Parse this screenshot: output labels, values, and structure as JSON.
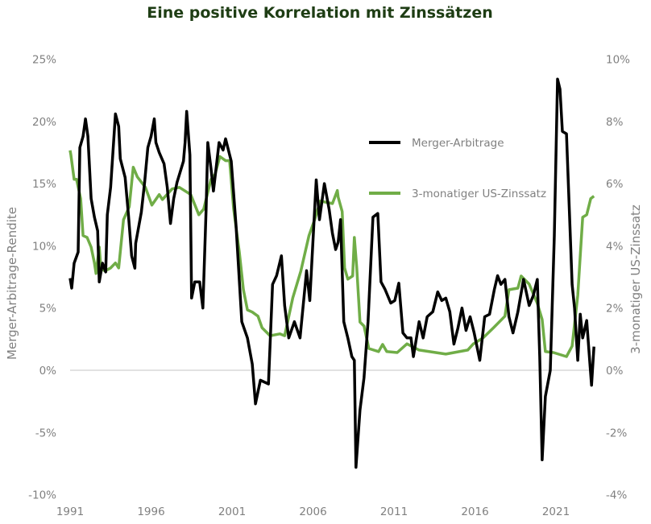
{
  "chart_data": {
    "type": "line",
    "title": "Eine positive Korrelation mit Zinssätzen",
    "ylabel": "Merger-Arbitrage-Rendite",
    "y2label": "3-monatiger US-Zinssatz",
    "xlabel": "",
    "xlim": [
      1991,
      2023.4
    ],
    "ylim": [
      -10,
      25
    ],
    "y2lim": [
      -4,
      10
    ],
    "x_ticks": [
      "1991",
      "1996",
      "2001",
      "2006",
      "2011",
      "2016",
      "2021"
    ],
    "y_ticks": [
      "25%",
      "20%",
      "15%",
      "10%",
      "5%",
      "0%",
      "-5%",
      "-10%"
    ],
    "y2_ticks": [
      "10%",
      "8%",
      "6%",
      "4%",
      "2%",
      "0%",
      "-2%",
      "-4%"
    ],
    "grid": "zero line only",
    "legend_position": "top-right",
    "colors": {
      "title": "#1e3d14",
      "merger": "#000000",
      "rate": "#70ad47",
      "axis_text": "#808080",
      "zero_line": "#d9d9d9"
    },
    "series": [
      {
        "name": "Merger-Arbitrage",
        "axis": "left",
        "points": [
          [
            1991.0,
            7.4
          ],
          [
            1991.1,
            6.6
          ],
          [
            1991.25,
            8.6
          ],
          [
            1991.5,
            9.5
          ],
          [
            1991.6,
            17.9
          ],
          [
            1991.8,
            18.8
          ],
          [
            1991.95,
            20.2
          ],
          [
            1992.1,
            18.8
          ],
          [
            1992.3,
            13.8
          ],
          [
            1992.5,
            12.3
          ],
          [
            1992.7,
            11.2
          ],
          [
            1992.8,
            7.1
          ],
          [
            1993.0,
            8.6
          ],
          [
            1993.2,
            7.9
          ],
          [
            1993.3,
            12.5
          ],
          [
            1993.5,
            14.7
          ],
          [
            1993.8,
            20.6
          ],
          [
            1994.0,
            19.6
          ],
          [
            1994.1,
            17.0
          ],
          [
            1994.4,
            15.5
          ],
          [
            1994.6,
            12.5
          ],
          [
            1994.8,
            9.2
          ],
          [
            1995.0,
            8.2
          ],
          [
            1995.05,
            10.2
          ],
          [
            1995.4,
            12.7
          ],
          [
            1995.6,
            15.1
          ],
          [
            1995.8,
            17.9
          ],
          [
            1996.0,
            18.8
          ],
          [
            1996.2,
            20.2
          ],
          [
            1996.3,
            18.3
          ],
          [
            1996.5,
            17.5
          ],
          [
            1996.8,
            16.6
          ],
          [
            1997.0,
            14.7
          ],
          [
            1997.2,
            11.8
          ],
          [
            1997.4,
            13.8
          ],
          [
            1997.6,
            15.1
          ],
          [
            1998.0,
            16.8
          ],
          [
            1998.1,
            18.3
          ],
          [
            1998.2,
            20.8
          ],
          [
            1998.4,
            17.3
          ],
          [
            1998.5,
            5.8
          ],
          [
            1998.7,
            7.1
          ],
          [
            1999.0,
            7.1
          ],
          [
            1999.2,
            5.0
          ],
          [
            1999.4,
            12.9
          ],
          [
            1999.5,
            18.3
          ],
          [
            1999.7,
            16.2
          ],
          [
            1999.85,
            14.4
          ],
          [
            2000.2,
            18.3
          ],
          [
            2000.45,
            17.7
          ],
          [
            2000.6,
            18.6
          ],
          [
            2000.95,
            16.8
          ],
          [
            2001.25,
            11.6
          ],
          [
            2001.6,
            3.9
          ],
          [
            2001.95,
            2.6
          ],
          [
            2002.25,
            0.5
          ],
          [
            2002.45,
            -2.7
          ],
          [
            2002.75,
            -0.8
          ],
          [
            2003.25,
            -1.1
          ],
          [
            2003.5,
            6.9
          ],
          [
            2003.75,
            7.6
          ],
          [
            2004.05,
            9.2
          ],
          [
            2004.25,
            5.2
          ],
          [
            2004.5,
            2.6
          ],
          [
            2004.85,
            3.9
          ],
          [
            2005.2,
            2.6
          ],
          [
            2005.6,
            8.0
          ],
          [
            2005.8,
            5.6
          ],
          [
            2006.2,
            15.3
          ],
          [
            2006.4,
            12.1
          ],
          [
            2006.7,
            15.0
          ],
          [
            2007.0,
            12.9
          ],
          [
            2007.2,
            11.0
          ],
          [
            2007.4,
            9.7
          ],
          [
            2007.55,
            10.3
          ],
          [
            2007.7,
            12.1
          ],
          [
            2007.9,
            3.9
          ],
          [
            2008.15,
            2.6
          ],
          [
            2008.4,
            1.1
          ],
          [
            2008.55,
            0.8
          ],
          [
            2008.65,
            -7.8
          ],
          [
            2008.9,
            -3.2
          ],
          [
            2009.15,
            -0.6
          ],
          [
            2009.4,
            3.9
          ],
          [
            2009.7,
            12.3
          ],
          [
            2010.0,
            12.6
          ],
          [
            2010.2,
            7.1
          ],
          [
            2010.45,
            6.5
          ],
          [
            2010.8,
            5.4
          ],
          [
            2011.05,
            5.6
          ],
          [
            2011.3,
            7.0
          ],
          [
            2011.55,
            3.0
          ],
          [
            2011.8,
            2.6
          ],
          [
            2012.05,
            2.6
          ],
          [
            2012.2,
            1.1
          ],
          [
            2012.55,
            3.9
          ],
          [
            2012.8,
            2.6
          ],
          [
            2013.05,
            4.3
          ],
          [
            2013.4,
            4.7
          ],
          [
            2013.7,
            6.3
          ],
          [
            2013.95,
            5.6
          ],
          [
            2014.2,
            5.8
          ],
          [
            2014.45,
            4.7
          ],
          [
            2014.7,
            2.1
          ],
          [
            2014.95,
            3.4
          ],
          [
            2015.2,
            5.0
          ],
          [
            2015.45,
            3.2
          ],
          [
            2015.7,
            4.3
          ],
          [
            2015.95,
            3.0
          ],
          [
            2016.3,
            0.8
          ],
          [
            2016.6,
            4.3
          ],
          [
            2016.9,
            4.5
          ],
          [
            2017.2,
            6.5
          ],
          [
            2017.4,
            7.6
          ],
          [
            2017.6,
            6.9
          ],
          [
            2017.85,
            7.3
          ],
          [
            2018.1,
            4.3
          ],
          [
            2018.35,
            3.0
          ],
          [
            2018.65,
            4.7
          ],
          [
            2019.0,
            7.3
          ],
          [
            2019.35,
            5.2
          ],
          [
            2019.6,
            6.0
          ],
          [
            2019.85,
            7.3
          ],
          [
            2020.0,
            1.1
          ],
          [
            2020.15,
            -7.2
          ],
          [
            2020.35,
            -2.1
          ],
          [
            2020.65,
            0.0
          ],
          [
            2020.9,
            10.8
          ],
          [
            2021.1,
            23.4
          ],
          [
            2021.25,
            22.6
          ],
          [
            2021.4,
            19.2
          ],
          [
            2021.65,
            19.0
          ],
          [
            2022.0,
            6.9
          ],
          [
            2022.15,
            5.0
          ],
          [
            2022.35,
            0.8
          ],
          [
            2022.5,
            4.5
          ],
          [
            2022.65,
            2.6
          ],
          [
            2022.9,
            4.0
          ],
          [
            2023.1,
            0.5
          ],
          [
            2023.2,
            -1.2
          ],
          [
            2023.35,
            1.9
          ]
        ]
      },
      {
        "name": "3-monatiger US-Zinssatz",
        "axis": "right",
        "points": [
          [
            1991.0,
            7.07
          ],
          [
            1991.05,
            6.92
          ],
          [
            1991.25,
            6.14
          ],
          [
            1991.4,
            6.14
          ],
          [
            1991.65,
            5.52
          ],
          [
            1991.8,
            4.33
          ],
          [
            1992.05,
            4.27
          ],
          [
            1992.3,
            3.96
          ],
          [
            1992.5,
            3.45
          ],
          [
            1992.6,
            3.11
          ],
          [
            1992.8,
            3.96
          ],
          [
            1992.9,
            3.29
          ],
          [
            1993.15,
            3.19
          ],
          [
            1993.5,
            3.29
          ],
          [
            1993.8,
            3.45
          ],
          [
            1994.0,
            3.29
          ],
          [
            1994.3,
            4.84
          ],
          [
            1994.65,
            5.26
          ],
          [
            1994.9,
            6.53
          ],
          [
            1995.15,
            6.22
          ],
          [
            1995.65,
            5.88
          ],
          [
            1996.05,
            5.31
          ],
          [
            1996.5,
            5.65
          ],
          [
            1996.7,
            5.49
          ],
          [
            1997.3,
            5.83
          ],
          [
            1997.75,
            5.88
          ],
          [
            1998.45,
            5.65
          ],
          [
            1998.95,
            5.0
          ],
          [
            1999.25,
            5.18
          ],
          [
            1999.7,
            6.14
          ],
          [
            1999.95,
            6.3
          ],
          [
            2000.25,
            6.87
          ],
          [
            2000.6,
            6.74
          ],
          [
            2000.85,
            6.74
          ],
          [
            2001.1,
            5.18
          ],
          [
            2001.45,
            3.81
          ],
          [
            2001.7,
            2.59
          ],
          [
            2001.95,
            1.94
          ],
          [
            2002.25,
            1.87
          ],
          [
            2002.6,
            1.74
          ],
          [
            2002.85,
            1.37
          ],
          [
            2003.35,
            1.11
          ],
          [
            2003.95,
            1.17
          ],
          [
            2004.25,
            1.11
          ],
          [
            2004.75,
            2.33
          ],
          [
            2005.25,
            3.19
          ],
          [
            2005.75,
            4.33
          ],
          [
            2006.1,
            4.84
          ],
          [
            2006.45,
            5.44
          ],
          [
            2007.2,
            5.36
          ],
          [
            2007.5,
            5.78
          ],
          [
            2007.55,
            5.57
          ],
          [
            2007.8,
            5.1
          ],
          [
            2007.95,
            3.29
          ],
          [
            2008.15,
            2.93
          ],
          [
            2008.45,
            3.03
          ],
          [
            2008.55,
            4.27
          ],
          [
            2008.7,
            3.29
          ],
          [
            2008.9,
            1.55
          ],
          [
            2009.15,
            1.42
          ],
          [
            2009.45,
            0.7
          ],
          [
            2010.05,
            0.6
          ],
          [
            2010.3,
            0.83
          ],
          [
            2010.55,
            0.6
          ],
          [
            2011.2,
            0.57
          ],
          [
            2011.8,
            0.85
          ],
          [
            2012.55,
            0.65
          ],
          [
            2014.2,
            0.52
          ],
          [
            2015.55,
            0.65
          ],
          [
            2015.9,
            0.85
          ],
          [
            2016.5,
            1.04
          ],
          [
            2017.15,
            1.37
          ],
          [
            2017.85,
            1.74
          ],
          [
            2018.1,
            2.59
          ],
          [
            2018.65,
            2.64
          ],
          [
            2018.85,
            3.03
          ],
          [
            2019.35,
            2.77
          ],
          [
            2019.85,
            2.15
          ],
          [
            2020.15,
            1.63
          ],
          [
            2020.35,
            0.6
          ],
          [
            2020.85,
            0.57
          ],
          [
            2021.65,
            0.44
          ],
          [
            2022.0,
            0.78
          ],
          [
            2022.35,
            2.41
          ],
          [
            2022.65,
            4.92
          ],
          [
            2022.9,
            5.0
          ],
          [
            2023.15,
            5.52
          ],
          [
            2023.35,
            5.6
          ]
        ]
      }
    ]
  }
}
